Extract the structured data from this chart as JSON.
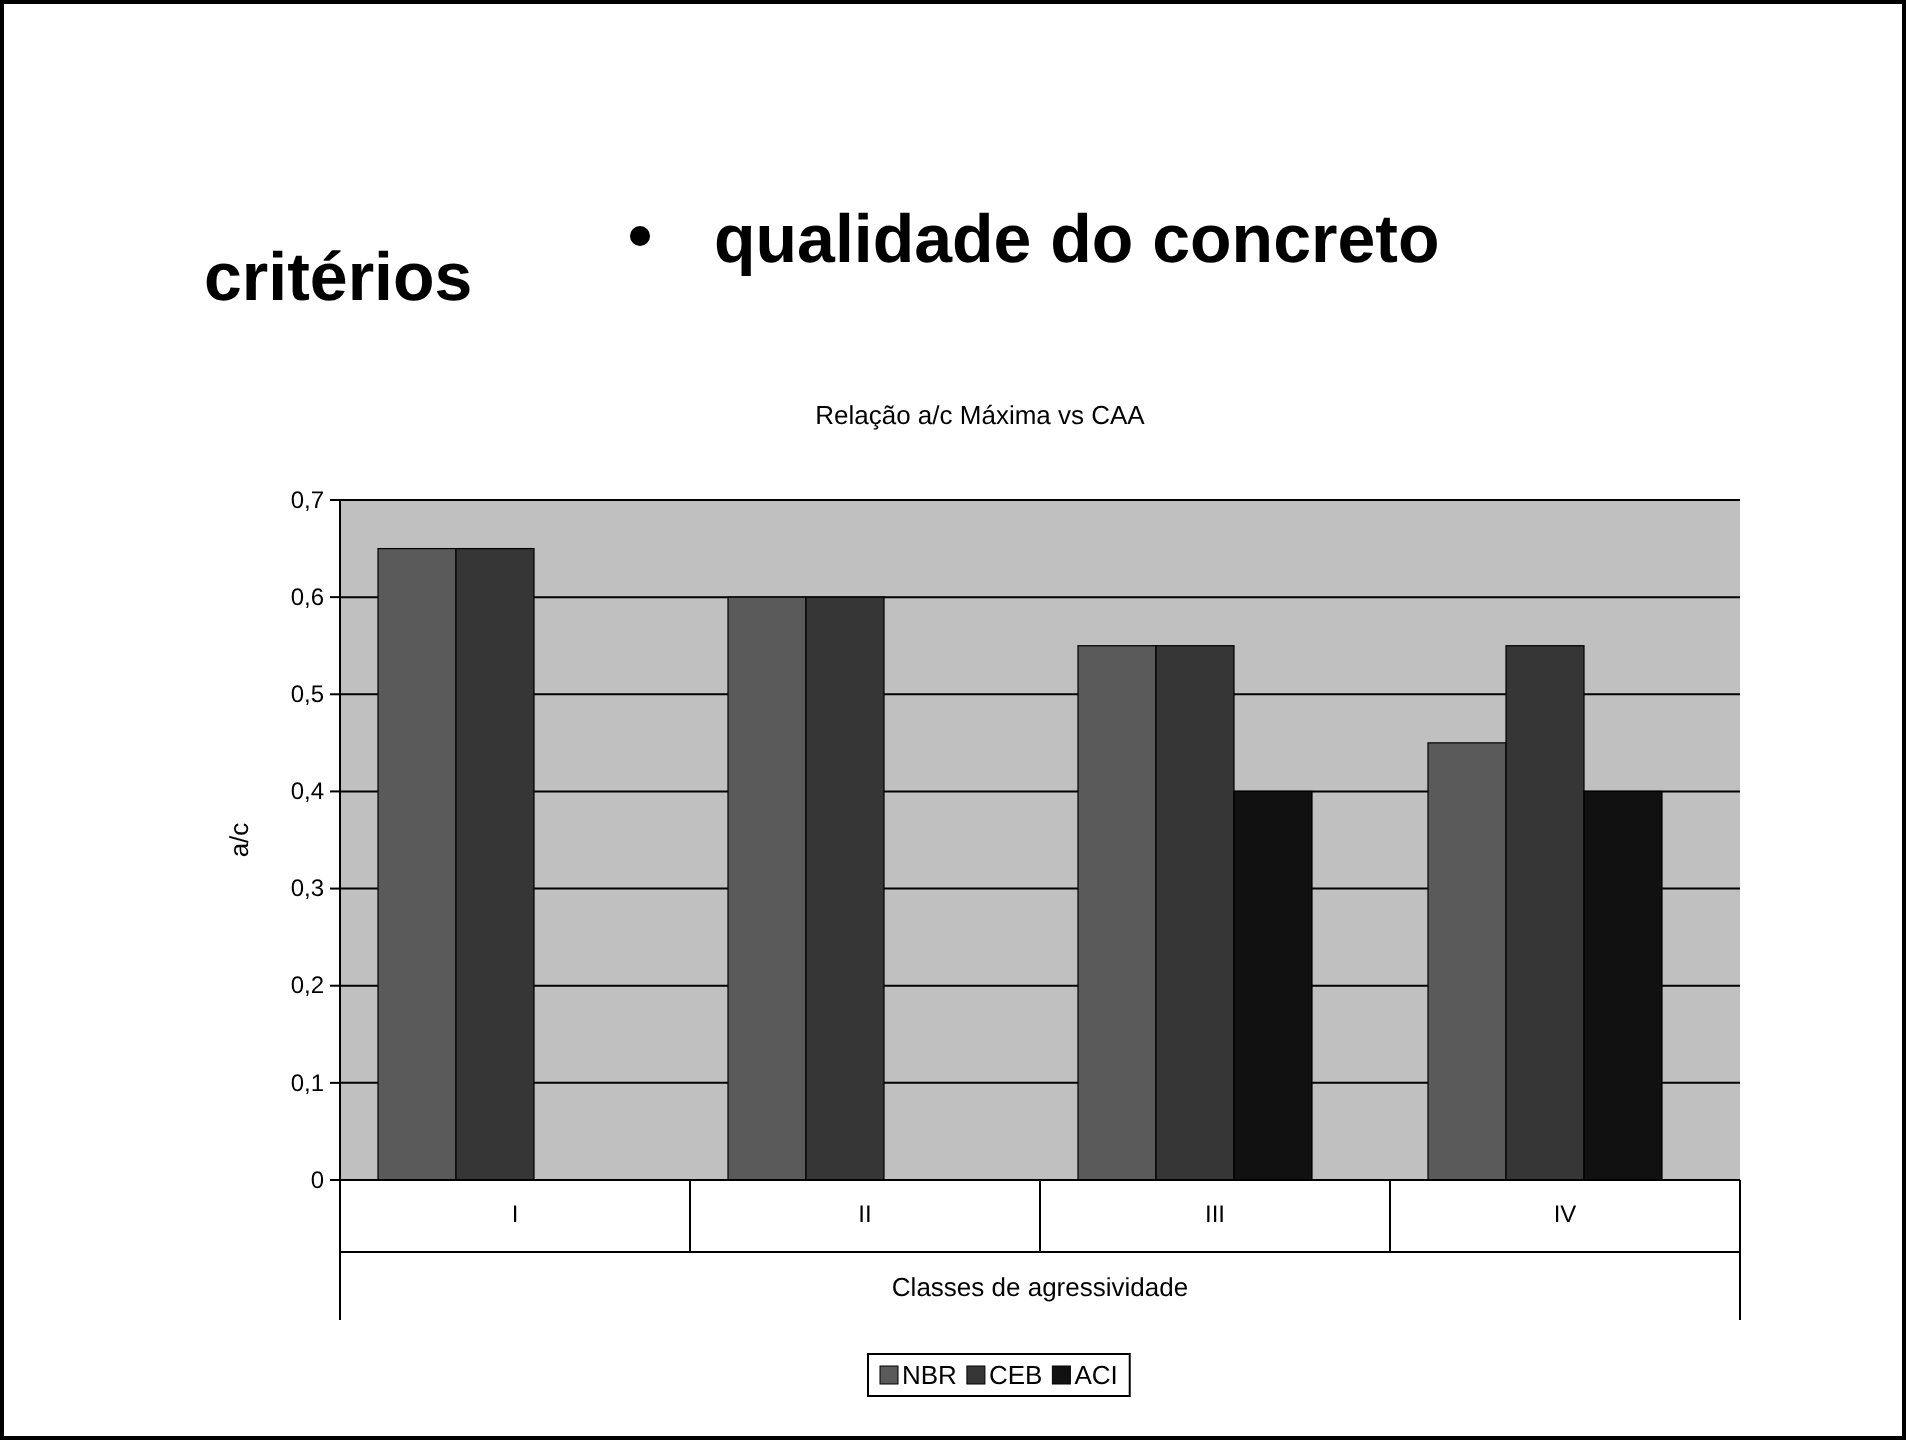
{
  "chart_data": {
    "type": "bar",
    "title": "Relação a/c Máxima vs CAA",
    "xlabel": "Classes de agressividade",
    "ylabel": "a/c",
    "annotations": [
      "critérios",
      "qualidade do concreto"
    ],
    "categories": [
      "I",
      "II",
      "III",
      "IV"
    ],
    "series": [
      {
        "name": "NBR",
        "color": "#5a5a5a",
        "values": [
          0.65,
          0.6,
          0.55,
          0.45
        ]
      },
      {
        "name": "CEB",
        "color": "#363636",
        "values": [
          0.65,
          0.6,
          0.55,
          0.55
        ]
      },
      {
        "name": "ACI",
        "color": "#111111",
        "values": [
          null,
          null,
          0.4,
          0.4
        ]
      }
    ],
    "ylim": [
      0,
      0.7
    ],
    "yticks": [
      {
        "value": 0,
        "label": "0"
      },
      {
        "value": 0.1,
        "label": "0,1"
      },
      {
        "value": 0.2,
        "label": "0,2"
      },
      {
        "value": 0.3,
        "label": "0,3"
      },
      {
        "value": 0.4,
        "label": "0,4"
      },
      {
        "value": 0.5,
        "label": "0,5"
      },
      {
        "value": 0.6,
        "label": "0,6"
      },
      {
        "value": 0.7,
        "label": "0,7"
      }
    ],
    "grid": "y",
    "legend": "bottom"
  }
}
